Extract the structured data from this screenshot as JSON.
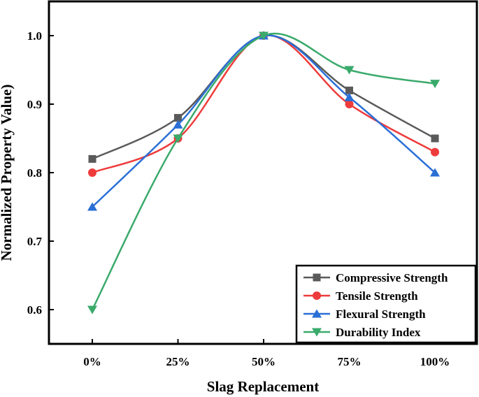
{
  "chart_data": {
    "type": "line",
    "title": "",
    "xlabel": "Slag Replacement",
    "ylabel": "Normalized Property Value)",
    "categories": [
      "0%",
      "25%",
      "50%",
      "75%",
      "100%"
    ],
    "ylim": [
      0.55,
      1.05
    ],
    "yticks": [
      0.6,
      0.7,
      0.8,
      0.9,
      1.0
    ],
    "ytick_labels": [
      "0.6",
      "0.7",
      "0.8",
      "0.9",
      "1.0"
    ],
    "grid": false,
    "legend_position": "bottom-right",
    "series": [
      {
        "name": "Compressive Strength",
        "values": [
          0.82,
          0.88,
          1.0,
          0.92,
          0.85
        ],
        "color": "#5a5a5a",
        "marker": "square"
      },
      {
        "name": "Tensile Strength",
        "values": [
          0.8,
          0.85,
          1.0,
          0.9,
          0.83
        ],
        "color": "#ee3b3b",
        "marker": "circle"
      },
      {
        "name": "Flexural Strength",
        "values": [
          0.75,
          0.87,
          1.0,
          0.91,
          0.8
        ],
        "color": "#2a6fd6",
        "marker": "triangle-up"
      },
      {
        "name": "Durability Index",
        "values": [
          0.6,
          0.85,
          1.0,
          0.95,
          0.93
        ],
        "color": "#3aaa6b",
        "marker": "triangle-down"
      }
    ]
  }
}
